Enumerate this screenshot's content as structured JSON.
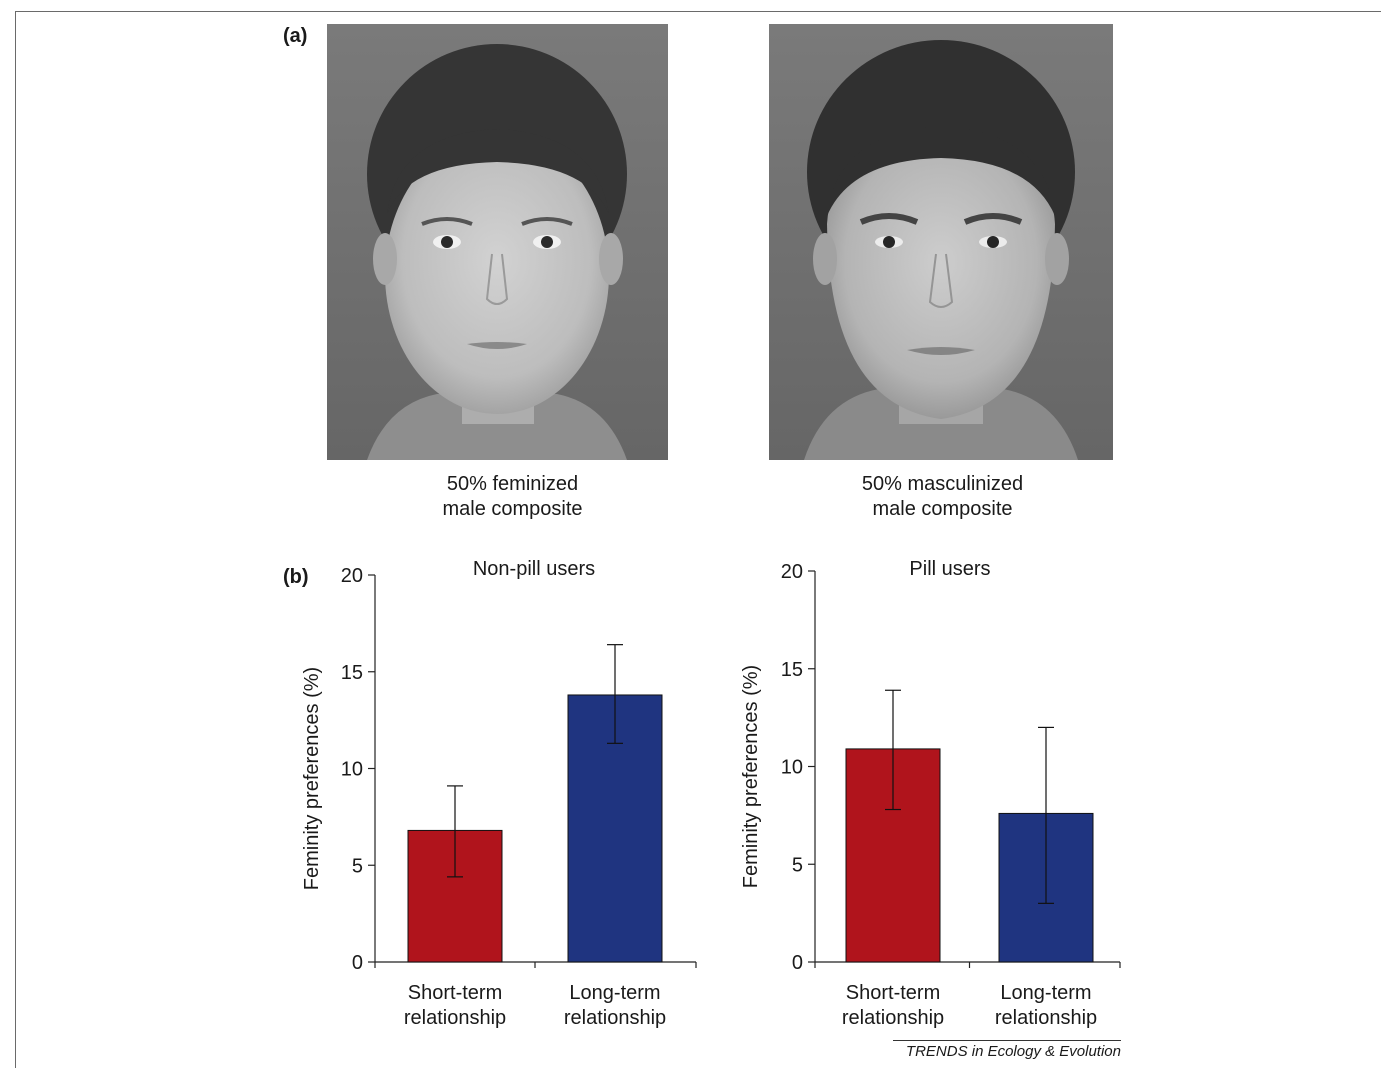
{
  "panel_a": {
    "label": "(a)",
    "images": [
      {
        "caption_line1": "50% feminized",
        "caption_line2": "male composite"
      },
      {
        "caption_line1": "50% masculinized",
        "caption_line2": "male composite"
      }
    ]
  },
  "panel_b": {
    "label": "(b)"
  },
  "credit": "TRENDS in Ecology & Evolution",
  "colors": {
    "short_term": "#b0141c",
    "long_term": "#1f3480",
    "face_bg": "#6f6f6f"
  },
  "chart_data": [
    {
      "type": "bar",
      "title": "Non-pill users",
      "ylabel": "Feminity preferences (%)",
      "xlabel": "",
      "ylim": [
        0,
        20
      ],
      "yticks": [
        0,
        5,
        10,
        15,
        20
      ],
      "categories": [
        [
          "Short-term",
          "relationship"
        ],
        [
          "Long-term",
          "relationship"
        ]
      ],
      "values": [
        6.8,
        13.8
      ],
      "error_upper": [
        9.1,
        16.4
      ],
      "error_lower": [
        4.4,
        11.3
      ],
      "bar_colors": [
        "#b0141c",
        "#1f3480"
      ]
    },
    {
      "type": "bar",
      "title": "Pill users",
      "ylabel": "Feminity preferences (%)",
      "xlabel": "",
      "ylim": [
        0,
        20
      ],
      "yticks": [
        0,
        5,
        10,
        15,
        20
      ],
      "categories": [
        [
          "Short-term",
          "relationship"
        ],
        [
          "Long-term",
          "relationship"
        ]
      ],
      "values": [
        10.9,
        7.6
      ],
      "error_upper": [
        13.9,
        12.0
      ],
      "error_lower": [
        7.8,
        3.0
      ],
      "bar_colors": [
        "#b0141c",
        "#1f3480"
      ]
    }
  ]
}
